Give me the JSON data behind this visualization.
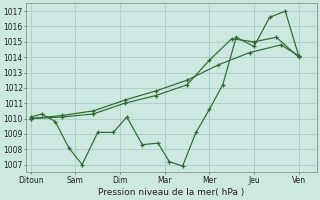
{
  "background_color": "#cce8e0",
  "grid_color": "#aacccc",
  "line_color": "#2d6a2d",
  "x_labels": [
    "Ditoun",
    "Sam",
    "Dim",
    "Mar",
    "Mer",
    "Jeu",
    "Ven"
  ],
  "x_tick_positions": [
    0,
    1,
    2,
    3,
    4,
    5,
    6
  ],
  "xlim": [
    -0.1,
    6.4
  ],
  "ylim": [
    1006.5,
    1017.5
  ],
  "yticks": [
    1007,
    1008,
    1009,
    1010,
    1011,
    1012,
    1013,
    1014,
    1015,
    1016,
    1017
  ],
  "xlabel": "Pression niveau de la mer( hPa )",
  "series1_x": [
    0,
    0.25,
    0.55,
    0.85,
    1.15,
    1.5,
    1.85,
    2.15,
    2.5,
    2.85,
    3.1,
    3.4,
    3.7,
    4.0,
    4.3,
    4.6,
    5.0,
    5.35,
    5.7,
    6.0
  ],
  "series1_y": [
    1010.1,
    1010.3,
    1009.8,
    1008.1,
    1007.0,
    1009.1,
    1009.1,
    1010.1,
    1008.3,
    1008.4,
    1007.2,
    1006.9,
    1009.1,
    1010.6,
    1012.2,
    1015.3,
    1014.7,
    1016.6,
    1017.0,
    1014.1
  ],
  "series2_x": [
    0,
    0.7,
    1.4,
    2.1,
    2.8,
    3.5,
    4.2,
    4.9,
    5.6,
    6.0
  ],
  "series2_y": [
    1010.0,
    1010.2,
    1010.5,
    1011.2,
    1011.8,
    1012.5,
    1013.5,
    1014.3,
    1014.8,
    1014.1
  ],
  "series3_x": [
    0,
    0.7,
    1.4,
    2.1,
    2.8,
    3.5,
    4.0,
    4.5,
    5.0,
    5.5,
    6.0
  ],
  "series3_y": [
    1010.0,
    1010.1,
    1010.3,
    1011.0,
    1011.5,
    1012.2,
    1013.8,
    1015.2,
    1015.0,
    1015.3,
    1014.0
  ]
}
